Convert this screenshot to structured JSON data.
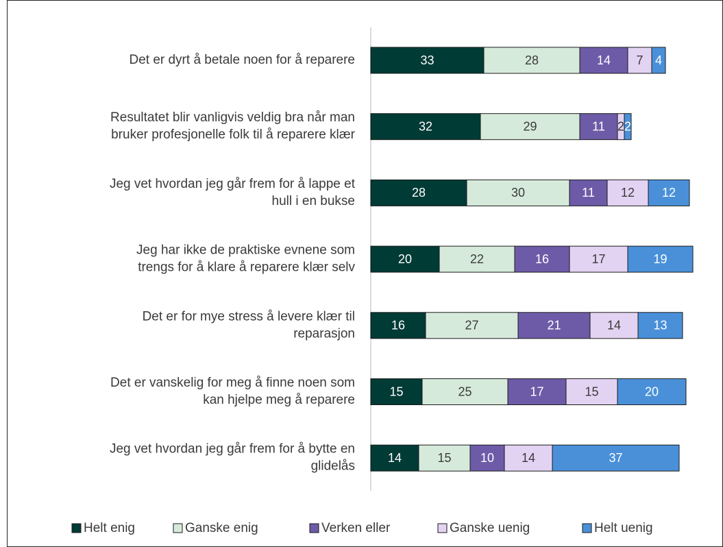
{
  "chart_data": {
    "type": "stacked_bar_horizontal",
    "categories": [
      "Det er dyrt å betale noen for å reparere",
      "Resultatet blir vanligvis veldig bra når man\nbruker profesjonelle folk til å reparere klær",
      "Jeg vet hvordan jeg går frem for å lappe et\nhull i en bukse",
      "Jeg har ikke de praktiske evnene som\ntrengs for å klare å reparere klær selv",
      "Det er for mye stress å levere klær til\nreparasjon",
      "Det er vanskelig for meg å finne noen som\nkan hjelpe meg å reparere",
      "Jeg vet hvordan jeg går frem for å bytte en\nglidelås"
    ],
    "series": [
      {
        "name": "Helt enig",
        "color": "#003b36",
        "values": [
          33,
          32,
          28,
          20,
          16,
          15,
          14
        ]
      },
      {
        "name": "Ganske enig",
        "color": "#d6eadb",
        "values": [
          28,
          29,
          30,
          22,
          27,
          25,
          15
        ]
      },
      {
        "name": "Verken eller",
        "color": "#6d5ba8",
        "values": [
          14,
          11,
          11,
          16,
          21,
          17,
          10
        ]
      },
      {
        "name": "Ganske uenig",
        "color": "#e3d3f3",
        "values": [
          7,
          2,
          12,
          17,
          14,
          15,
          14
        ]
      },
      {
        "name": "Helt uenig",
        "color": "#4a90d9",
        "values": [
          4,
          2,
          12,
          19,
          13,
          20,
          37
        ]
      }
    ],
    "xlim": [
      0,
      100
    ],
    "legend": "bottom"
  }
}
